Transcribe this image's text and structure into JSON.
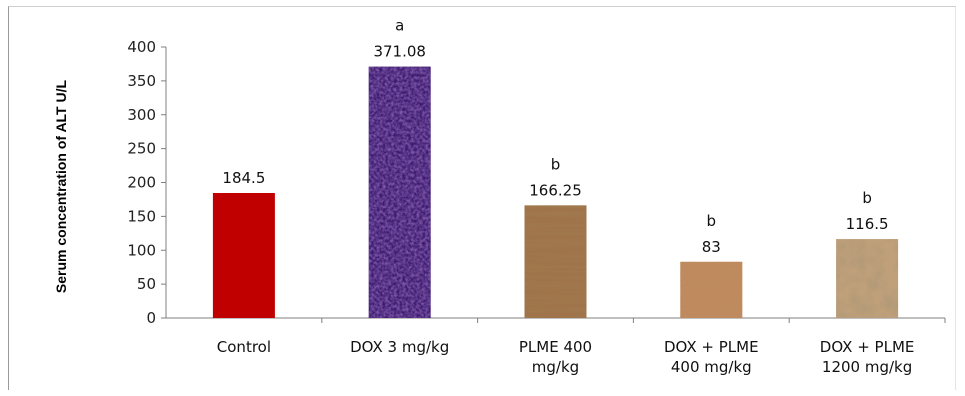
{
  "chart_data": {
    "type": "bar",
    "title": "",
    "xlabel": "",
    "ylabel": "Serum concentration of ALT U/L",
    "ylim": [
      0,
      400
    ],
    "yticks": [
      0,
      50,
      100,
      150,
      200,
      250,
      300,
      350,
      400
    ],
    "categories": [
      [
        "Control"
      ],
      [
        "DOX 3 mg/kg"
      ],
      [
        "PLME 400",
        "mg/kg"
      ],
      [
        "DOX + PLME",
        "400 mg/kg"
      ],
      [
        "DOX + PLME",
        "1200 mg/kg"
      ]
    ],
    "values": [
      184.5,
      371.08,
      166.25,
      83,
      116.5
    ],
    "value_labels": [
      "184.5",
      "371.08",
      "166.25",
      "83",
      "116.5"
    ],
    "significance": [
      "",
      "a",
      "b",
      "b",
      "b"
    ],
    "bar_fills": [
      "red",
      "purple-texture",
      "wood-texture",
      "cork-texture",
      "paper-texture"
    ],
    "colors": {
      "red": "#c00000",
      "purple": "#3b1a6e",
      "wood": "#a0744a",
      "cork": "#c28b5e",
      "paper": "#bfa07a"
    },
    "grid": false,
    "legend": "none"
  }
}
